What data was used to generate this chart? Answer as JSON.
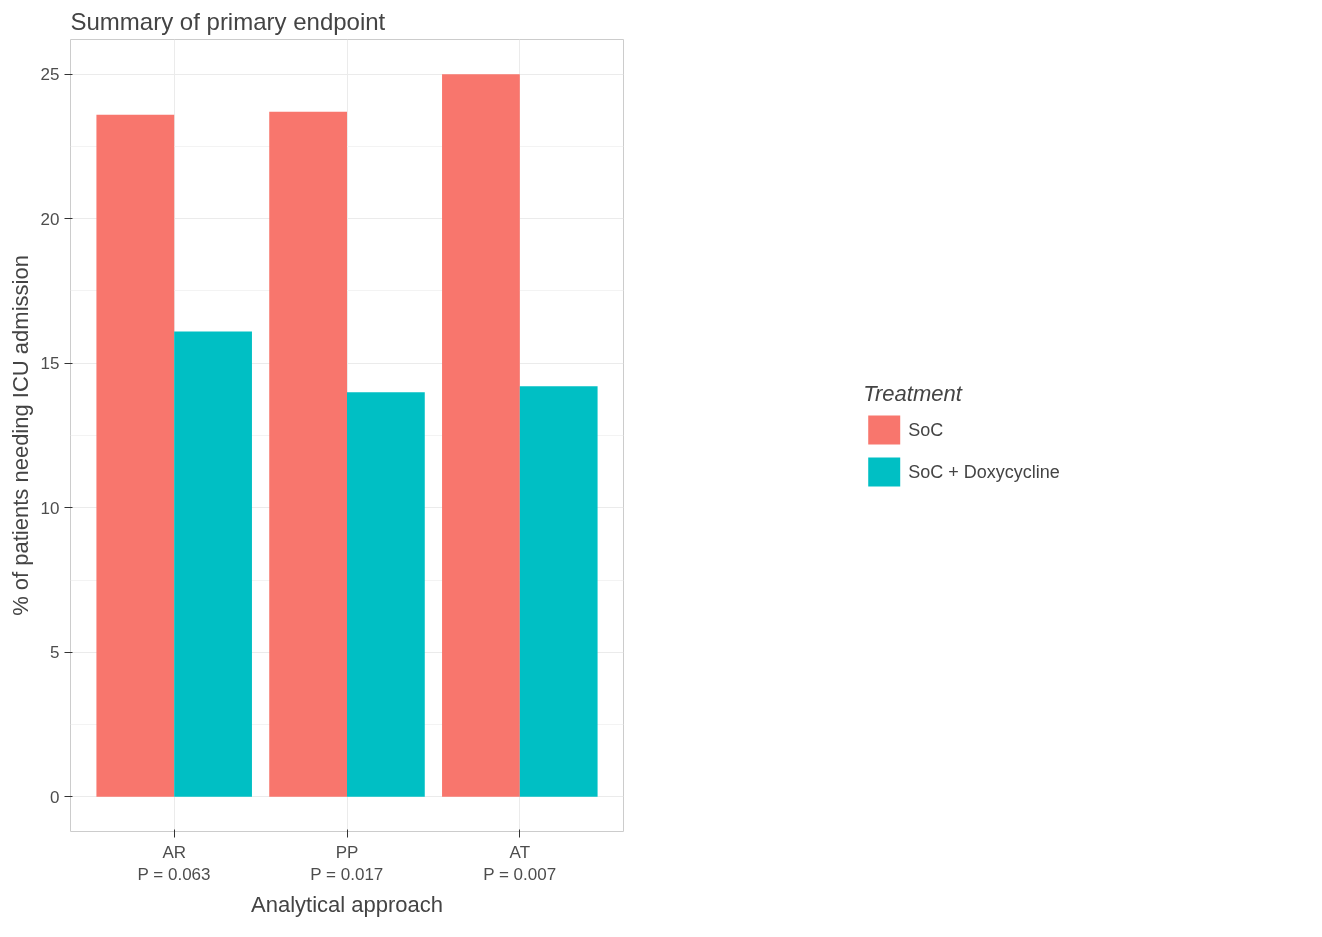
{
  "chart_data": {
    "type": "bar",
    "title": "Summary of primary endpoint",
    "xlabel": "Analytical approach",
    "ylabel": "% of patients needing ICU admission",
    "legend_title": "Treatment",
    "categories": [
      "AR\nP = 0.063",
      "PP\nP = 0.017",
      "AT\nP = 0.007"
    ],
    "series": [
      {
        "name": "SoC",
        "color": "#f8766d",
        "values": [
          23.6,
          23.7,
          25.0
        ]
      },
      {
        "name": "SoC + Doxycycline",
        "color": "#00bfc4",
        "values": [
          16.1,
          14.0,
          14.2
        ]
      }
    ],
    "ylim": [
      -1.2,
      26.2
    ],
    "yticks": [
      0,
      5,
      10,
      15,
      20,
      25
    ],
    "grid": true,
    "legend": "right"
  }
}
